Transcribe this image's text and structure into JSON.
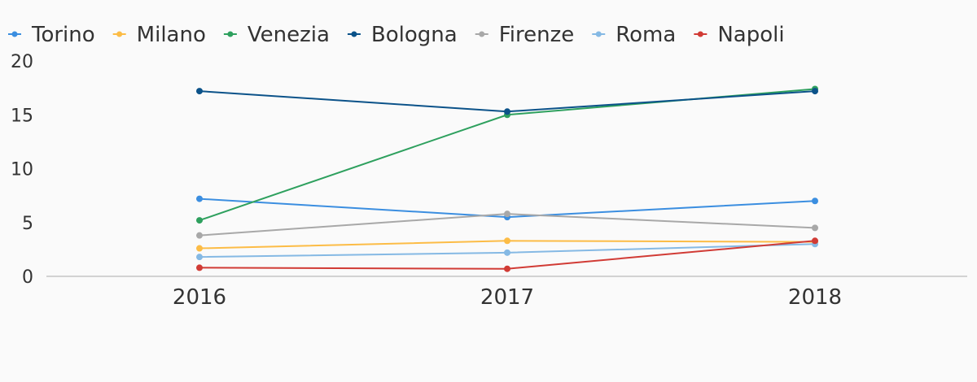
{
  "chart_data": {
    "type": "line",
    "title": "",
    "xlabel": "",
    "ylabel": "",
    "x": [
      "2016",
      "2017",
      "2018"
    ],
    "ylim": [
      0,
      20
    ],
    "yticks": [
      0,
      5,
      10,
      15,
      20
    ],
    "grid": false,
    "legend_position": "top-left",
    "series": [
      {
        "name": "Torino",
        "color": "#3b8ee0",
        "values": [
          7.2,
          5.5,
          7.0
        ]
      },
      {
        "name": "Milano",
        "color": "#fcbc46",
        "values": [
          2.6,
          3.3,
          3.2
        ]
      },
      {
        "name": "Venezia",
        "color": "#2ea05e",
        "values": [
          5.2,
          15.0,
          17.4
        ]
      },
      {
        "name": "Bologna",
        "color": "#0b5289",
        "values": [
          17.2,
          15.3,
          17.2
        ]
      },
      {
        "name": "Firenze",
        "color": "#a8a8a8",
        "values": [
          3.8,
          5.8,
          4.5
        ]
      },
      {
        "name": "Roma",
        "color": "#85b9e4",
        "values": [
          1.8,
          2.2,
          3.0
        ]
      },
      {
        "name": "Napoli",
        "color": "#d13b35",
        "values": [
          0.8,
          0.7,
          3.3
        ]
      }
    ]
  }
}
